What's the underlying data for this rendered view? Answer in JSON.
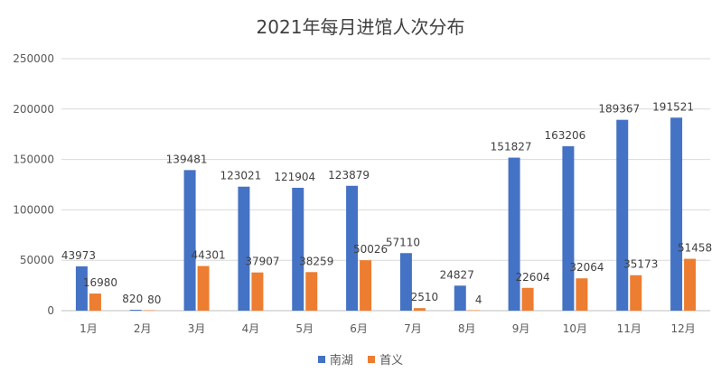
{
  "chart_data": {
    "type": "bar",
    "title": "2021年每月进馆人次分布",
    "categories": [
      "1月",
      "2月",
      "3月",
      "4月",
      "5月",
      "6月",
      "7月",
      "8月",
      "9月",
      "10月",
      "11月",
      "12月"
    ],
    "series": [
      {
        "name": "南湖",
        "color": "#4472C4",
        "values": [
          43973,
          820,
          139481,
          123021,
          121904,
          123879,
          57110,
          24827,
          151827,
          163206,
          189367,
          191521
        ]
      },
      {
        "name": "首义",
        "color": "#ED7D31",
        "values": [
          16980,
          80,
          44301,
          37907,
          38259,
          50026,
          2510,
          4,
          22604,
          32064,
          35173,
          51458
        ]
      }
    ],
    "ylim": [
      0,
      250000
    ],
    "yticks": [
      0,
      50000,
      100000,
      150000,
      200000,
      250000
    ],
    "grid": true,
    "legend_position": "bottom"
  }
}
